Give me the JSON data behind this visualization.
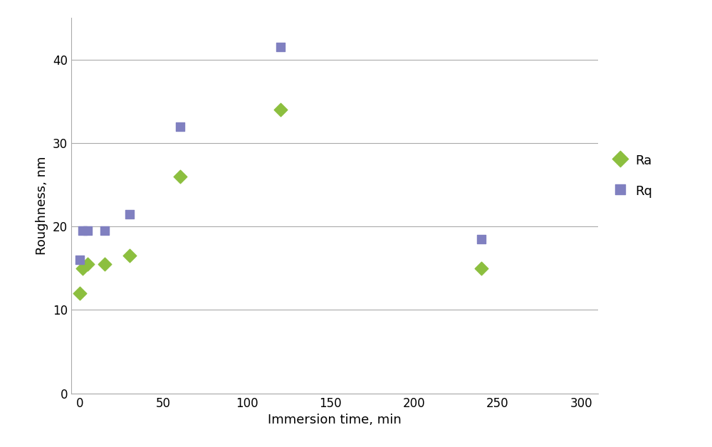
{
  "Ra_x": [
    0,
    2,
    5,
    15,
    30,
    60,
    120,
    240
  ],
  "Ra_y": [
    12.0,
    15.0,
    15.5,
    15.5,
    16.5,
    26.0,
    34.0,
    15.0
  ],
  "Rq_x": [
    0,
    2,
    5,
    15,
    30,
    60,
    120,
    240
  ],
  "Rq_y": [
    16.0,
    19.5,
    19.5,
    19.5,
    21.5,
    32.0,
    41.5,
    18.5
  ],
  "Ra_color": "#8CBF3F",
  "Rq_color": "#8080C0",
  "xlabel": "Immersion time, min",
  "ylabel": "Roughness, nm",
  "xlim": [
    -5,
    310
  ],
  "ylim": [
    0,
    45
  ],
  "xticks": [
    0,
    50,
    100,
    150,
    200,
    250,
    300
  ],
  "yticks": [
    0,
    10,
    20,
    30,
    40
  ],
  "legend_Ra": "Ra",
  "legend_Rq": "Rq",
  "marker_size_Ra": 90,
  "marker_size_Rq": 75,
  "background_color": "#ffffff",
  "grid_color": "#aaaaaa",
  "font_size_labels": 13,
  "font_size_ticks": 12,
  "font_size_legend": 13
}
